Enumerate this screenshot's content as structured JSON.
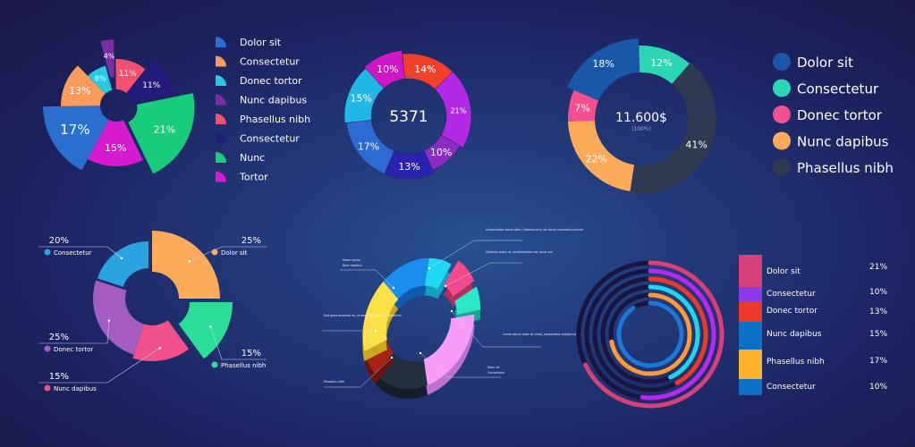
{
  "chart_data": [
    {
      "type": "pie",
      "variant": "rose",
      "categories": [
        "Dolor sit",
        "Consectetur",
        "Donec tortor",
        "Nunc dapibus",
        "Phasellus nibh",
        "Consectetur",
        "Nunc",
        "Tortor"
      ],
      "values": [
        17,
        13,
        8,
        4,
        11,
        11,
        21,
        15
      ],
      "labels": [
        "17%",
        "13%",
        "8%",
        "4%",
        "11%",
        "11%",
        "21%",
        "15%"
      ],
      "colors": [
        "#2a6fd0",
        "#fb9a5a",
        "#26c9e0",
        "#7a2fa0",
        "#f3506f",
        "#241c7a",
        "#18cc7c",
        "#d61bd0"
      ],
      "legend": "right"
    },
    {
      "type": "pie",
      "variant": "donut",
      "center_value": "5371",
      "values": [
        10,
        14,
        21,
        10,
        13,
        17,
        15
      ],
      "labels": [
        "10%",
        "14%",
        "21%",
        "10%",
        "13%",
        "17%",
        "15%"
      ],
      "colors": [
        "#cf17c8",
        "#f0402a",
        "#b22ae8",
        "#8e2bc0",
        "#2a22b0",
        "#2c6ad4",
        "#22b8e6"
      ]
    },
    {
      "type": "pie",
      "variant": "donut",
      "center_value": "11.600$",
      "center_sub": "(100%)",
      "categories": [
        "Consectetur",
        "Phasellus nibh",
        "Nunc dapibus",
        "Donec tortor",
        "Dolor sit"
      ],
      "values": [
        12,
        41,
        22,
        7,
        18
      ],
      "labels": [
        "12%",
        "41%",
        "22%",
        "7%",
        "18%"
      ],
      "colors": [
        "#2ad6b4",
        "#2d3a52",
        "#fdab5a",
        "#f2508e",
        "#1a57a8"
      ],
      "legend": "right",
      "legend_order": [
        "Dolor sit",
        "Consectetur",
        "Donec tortor",
        "Nunc dapibus",
        "Phasellus nibh"
      ],
      "legend_colors": [
        "#1a57a8",
        "#2ad6b4",
        "#f2508e",
        "#fdab5a",
        "#2d3a52"
      ]
    },
    {
      "type": "pie",
      "variant": "donut-exploded",
      "categories": [
        "Dolor sit",
        "Phasellus nibh",
        "Nunc dapibus",
        "Donec tortor",
        "Consectetur"
      ],
      "values": [
        25,
        15,
        15,
        25,
        20
      ],
      "labels": [
        "25%",
        "15%",
        "15%",
        "25%",
        "20%"
      ],
      "colors": [
        "#fdab5a",
        "#2ade98",
        "#f2508a",
        "#a45cc0",
        "#2aa4e0"
      ]
    },
    {
      "type": "pie",
      "variant": "3d-ring",
      "colors": [
        "#1a8ef0",
        "#1fd8f2",
        "#f24a8c",
        "#2ae8c8",
        "#f79cf7",
        "#232e40",
        "#a82218",
        "#fde046"
      ],
      "annotations": [
        "Suspendisse varius diam. Vivamus arcu vel tortor vulputate pulvinar",
        "Vivamus quam ut, condimentum nec lacus non",
        "Donec tortor",
        "Nunc dapibus",
        "Sed porta euismod mi, id amet tempus odio blandit at.",
        "Lorem ipsum dolor sit amet, consectetur adipiscing elit.",
        "Dolor sit",
        "Consectetur",
        "Phasellus nibh"
      ]
    },
    {
      "type": "bar",
      "variant": "radial-rings",
      "categories": [
        "Dolor sit",
        "Consectetur",
        "Donec tortor",
        "Nunc dapibus",
        "Phasellus nibh",
        "Consectetur"
      ],
      "values": [
        21,
        10,
        13,
        15,
        17,
        10
      ],
      "labels": [
        "21%",
        "10%",
        "13%",
        "15%",
        "17%",
        "10%"
      ],
      "colors": [
        "#d8407a",
        "#8a3ae8",
        "#ec3a2a",
        "#0a70c8",
        "#fdb22a",
        "#0a70c8"
      ],
      "ring_colors": [
        "#d8407a",
        "#b52af0",
        "#ec3a2a",
        "#1ad8f0",
        "#fd9a3a",
        "#1a78d8"
      ],
      "ring_fill_fraction": [
        0.68,
        0.52,
        0.42,
        0.43,
        0.72,
        0.91
      ]
    }
  ]
}
